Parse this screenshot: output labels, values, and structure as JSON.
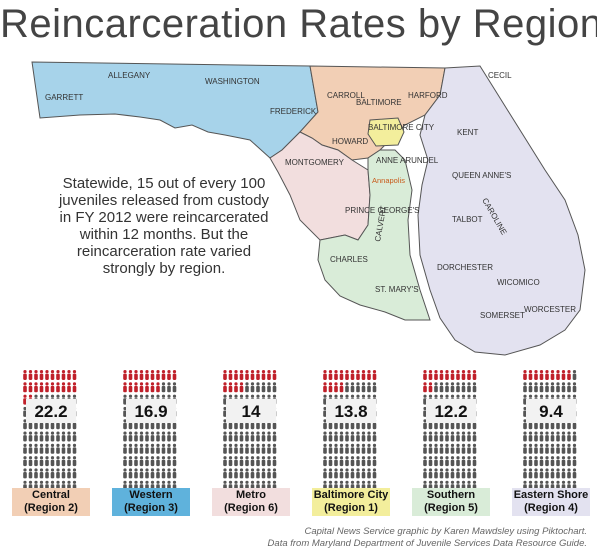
{
  "title": "Reincarceration Rates by Region",
  "statement": "Statewide, 15 out of every 100 juveniles released from custody in FY 2012 were reincarcerated within 12 months. But the reincarceration rate varied strongly by region.",
  "map": {
    "counties": [
      "GARRETT",
      "ALLEGANY",
      "WASHINGTON",
      "FREDERICK",
      "CARROLL",
      "BALTIMORE",
      "HARFORD",
      "BALTIMORE CITY",
      "HOWARD",
      "MONTGOMERY",
      "ANNE ARUNDEL",
      "Annapolis",
      "PRINCE GEORGE'S",
      "CHARLES",
      "CALVERT",
      "ST. MARY'S",
      "CECIL",
      "KENT",
      "QUEEN ANNE'S",
      "CAROLINE",
      "TALBOT",
      "DORCHESTER",
      "WICOMICO",
      "SOMERSET",
      "WORCESTER"
    ],
    "region_colors": {
      "western": "#a7d3ea",
      "central": "#f2cfb5",
      "metro": "#f2dede",
      "baltimore_city": "#f3ee9c",
      "southern": "#d9ecd8",
      "eastern": "#e3e2f0"
    }
  },
  "chart_data": {
    "type": "bar",
    "unit_text": "out of 100 juveniles reincarcerated",
    "categories": [
      "Central (Region 2)",
      "Western (Region 3)",
      "Metro (Region 6)",
      "Baltimore City (Region 1)",
      "Southern (Region 5)",
      "Eastern Shore (Region 4)"
    ],
    "values": [
      22.2,
      16.9,
      14,
      13.8,
      12.2,
      9.4
    ],
    "value_labels": [
      "22.2",
      "16.9",
      "14",
      "13.8",
      "12.2",
      "9.4"
    ],
    "ylim": [
      0,
      100
    ],
    "regions": [
      {
        "line1": "Central",
        "line2": "(Region 2)",
        "color": "#f2cfb5"
      },
      {
        "line1": "Western",
        "line2": "(Region 3)",
        "color": "#5fb2dc"
      },
      {
        "line1": "Metro",
        "line2": "(Region 6)",
        "color": "#f2dede"
      },
      {
        "line1": "Baltimore City",
        "line2": "(Region 1)",
        "color": "#f3ee9c"
      },
      {
        "line1": "Southern",
        "line2": "(Region 5)",
        "color": "#d9ecd8"
      },
      {
        "line1": "Eastern Shore",
        "line2": "(Region 4)",
        "color": "#e3e2f0"
      }
    ],
    "highlight_color": "#c0202a",
    "base_color": "#555555"
  },
  "credit": {
    "line1": "Capital News Service graphic by Karen Mawdsley using Piktochart.",
    "line2": "Data from Maryland Department of Juvenile Services Data Resource Guide."
  }
}
